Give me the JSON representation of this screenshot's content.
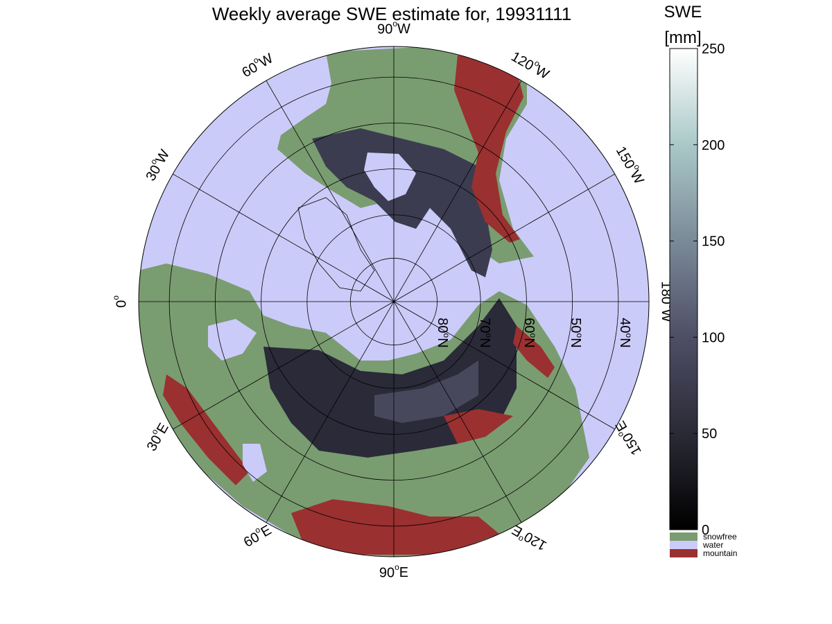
{
  "figure": {
    "title": "Weekly average SWE estimate for, 19931111",
    "colorbar": {
      "title_line1": "SWE",
      "title_line2": "[mm]",
      "ticks": [
        "0",
        "50",
        "100",
        "150",
        "200",
        "250"
      ],
      "range": [
        0,
        250
      ],
      "legend": [
        {
          "label": "snowfree",
          "color": "#7a9c71"
        },
        {
          "label": "water",
          "color": "#cbcbf9"
        },
        {
          "label": "mountain",
          "color": "#9a3030"
        }
      ]
    },
    "longitude_labels": [
      {
        "text": "0",
        "sup": "o",
        "deg": 0
      },
      {
        "text": "30",
        "sup": "o",
        "suffix": "W",
        "deg": 30
      },
      {
        "text": "60",
        "sup": "o",
        "suffix": "W",
        "deg": 60
      },
      {
        "text": "90",
        "sup": "o",
        "suffix": "W",
        "deg": 90
      },
      {
        "text": "120",
        "sup": "o",
        "suffix": "W",
        "deg": 120
      },
      {
        "text": "150",
        "sup": "o",
        "suffix": "W",
        "deg": 150
      },
      {
        "text": "180",
        "sup": "o",
        "suffix": "W",
        "deg": 180
      },
      {
        "text": "30",
        "sup": "o",
        "suffix": "E",
        "deg": -30
      },
      {
        "text": "60",
        "sup": "o",
        "suffix": "E",
        "deg": -60
      },
      {
        "text": "90",
        "sup": "o",
        "suffix": "E",
        "deg": -90
      },
      {
        "text": "120",
        "sup": "o",
        "suffix": "E",
        "deg": -120
      },
      {
        "text": "150",
        "sup": "o",
        "suffix": "E",
        "deg": -150
      }
    ],
    "latitude_labels": [
      "80",
      "70",
      "60",
      "50",
      "40"
    ],
    "latitude_suffix": "N",
    "colors": {
      "water": "#cbcbf9",
      "snowfree": "#7a9c71",
      "mountain": "#9a3030",
      "snow_dark": "#141420",
      "snow_mid": "#3c3c50",
      "snow_light": "#5a5a78"
    }
  }
}
